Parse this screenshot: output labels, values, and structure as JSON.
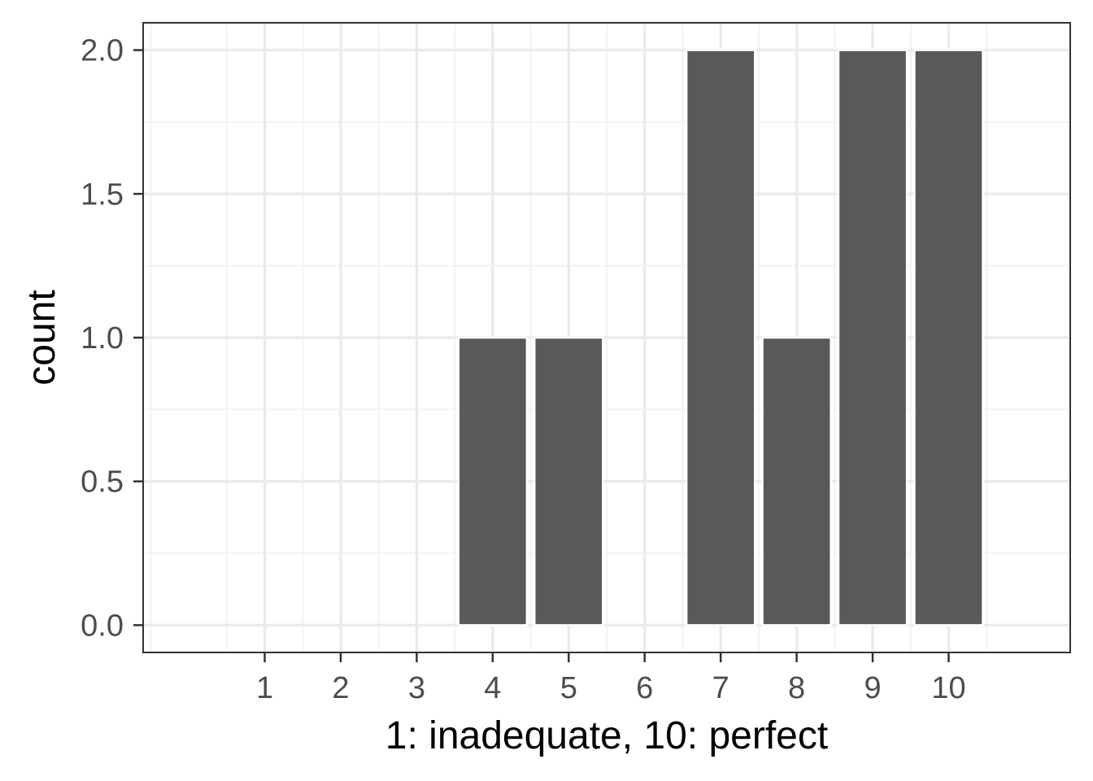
{
  "chart_data": {
    "type": "bar",
    "title": "",
    "xlabel": "1: inadequate, 10: perfect",
    "ylabel": "count",
    "categories": [
      1,
      2,
      3,
      4,
      5,
      6,
      7,
      8,
      9,
      10
    ],
    "values": [
      0,
      0,
      0,
      1,
      1,
      0,
      2,
      1,
      2,
      2
    ],
    "x_ticks": [
      "1",
      "2",
      "3",
      "4",
      "5",
      "6",
      "7",
      "8",
      "9",
      "10"
    ],
    "y_ticks": [
      "0.0",
      "0.5",
      "1.0",
      "1.5",
      "2.0"
    ],
    "y_tick_values": [
      0,
      0.5,
      1.0,
      1.5,
      2.0
    ],
    "xlim": [
      -0.6,
      11.6
    ],
    "ylim": [
      -0.095,
      2.095
    ],
    "grid": true,
    "legend": "none",
    "colors": {
      "bar": "#595959",
      "bar_outline": "#ffffff",
      "panel_background": "#ffffff",
      "grid_major": "#ebebeb",
      "grid_minor": "#f2f2f2",
      "panel_border": "#333333",
      "tick": "#333333"
    }
  }
}
